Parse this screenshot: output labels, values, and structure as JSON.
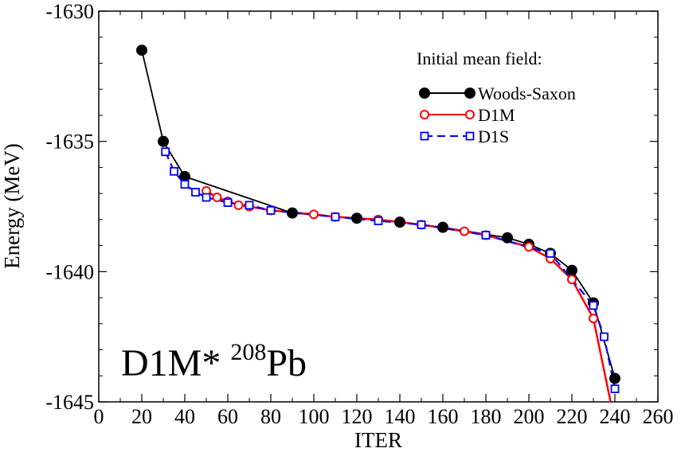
{
  "chart_data": {
    "type": "line",
    "xlabel": "ITER",
    "ylabel": "Energy (MeV)",
    "xlim": [
      0,
      260
    ],
    "ylim": [
      -1645,
      -1630
    ],
    "xticks": [
      0,
      20,
      40,
      60,
      80,
      100,
      120,
      140,
      160,
      180,
      200,
      220,
      240,
      260
    ],
    "yticks": [
      -1645,
      -1640,
      -1635,
      -1630
    ],
    "legend_title": "Initial mean field:",
    "legend_position": "top-right",
    "annotation": {
      "main": "D1M* ",
      "mass_number": "208",
      "element": "Pb"
    },
    "series": [
      {
        "name": "Woods-Saxon",
        "color": "#000000",
        "marker": "filled-circle",
        "line": "solid",
        "x": [
          20,
          30,
          40,
          90,
          120,
          140,
          160,
          190,
          200,
          210,
          220,
          230,
          240
        ],
        "y": [
          -1631.5,
          -1635.0,
          -1636.35,
          -1637.75,
          -1637.95,
          -1638.1,
          -1638.3,
          -1638.7,
          -1638.95,
          -1639.3,
          -1639.95,
          -1641.2,
          -1644.1
        ]
      },
      {
        "name": "D1M",
        "color": "#ff0000",
        "marker": "open-circle",
        "line": "solid",
        "x": [
          50,
          55,
          60,
          65,
          70,
          80,
          100,
          110,
          130,
          150,
          170,
          180,
          200,
          210,
          220,
          230,
          238
        ],
        "y": [
          -1636.9,
          -1637.15,
          -1637.3,
          -1637.45,
          -1637.5,
          -1637.65,
          -1637.8,
          -1637.9,
          -1638.0,
          -1638.2,
          -1638.45,
          -1638.6,
          -1639.05,
          -1639.5,
          -1640.3,
          -1641.8,
          -1645.0
        ]
      },
      {
        "name": "D1S",
        "color": "#0000ff",
        "marker": "open-square",
        "line": "dashed",
        "x": [
          31,
          35,
          40,
          45,
          50,
          60,
          70,
          80,
          110,
          130,
          150,
          180,
          210,
          230,
          235,
          240
        ],
        "y": [
          -1635.4,
          -1636.15,
          -1636.65,
          -1636.95,
          -1637.15,
          -1637.35,
          -1637.45,
          -1637.65,
          -1637.9,
          -1638.05,
          -1638.2,
          -1638.6,
          -1639.3,
          -1641.3,
          -1642.5,
          -1644.5
        ]
      }
    ]
  }
}
